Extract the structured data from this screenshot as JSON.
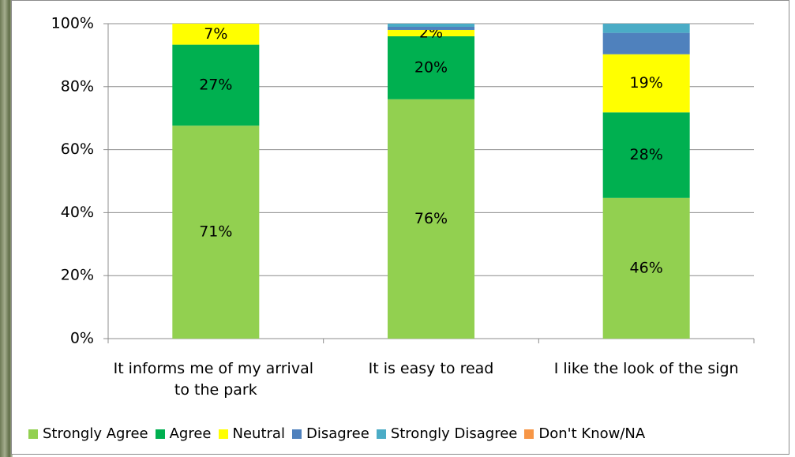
{
  "chart_data": {
    "type": "bar",
    "stacked": "percent",
    "categories": [
      "It informs me of my arrival to the park",
      "It is easy to read",
      "I like the look of the sign"
    ],
    "series": [
      {
        "name": "Strongly Agree",
        "color": "#92d050",
        "values": [
          71,
          76,
          46
        ],
        "value_labels": [
          "71%",
          "76%",
          "46%"
        ]
      },
      {
        "name": "Agree",
        "color": "#00b050",
        "values": [
          27,
          20,
          28
        ],
        "value_labels": [
          "27%",
          "20%",
          "28%"
        ]
      },
      {
        "name": "Neutral",
        "color": "#ffff00",
        "values": [
          7,
          2,
          19
        ],
        "value_labels": [
          "7%",
          "2%",
          "19%"
        ]
      },
      {
        "name": "Disagree",
        "color": "#4f81bd",
        "values": [
          0,
          1,
          7
        ]
      },
      {
        "name": "Strongly Disagree",
        "color": "#4bacc6",
        "values": [
          0,
          1,
          3
        ]
      },
      {
        "name": "Don't Know/NA",
        "color": "#f79646",
        "values": [
          0,
          0,
          0
        ]
      }
    ],
    "ylim": [
      0,
      100
    ],
    "yticks": [
      {
        "value": 0,
        "label": "0%"
      },
      {
        "value": 20,
        "label": "20%"
      },
      {
        "value": 40,
        "label": "40%"
      },
      {
        "value": 60,
        "label": "60%"
      },
      {
        "value": 80,
        "label": "80%"
      },
      {
        "value": 100,
        "label": "100%"
      }
    ],
    "grid": true,
    "legend": "bottom"
  }
}
